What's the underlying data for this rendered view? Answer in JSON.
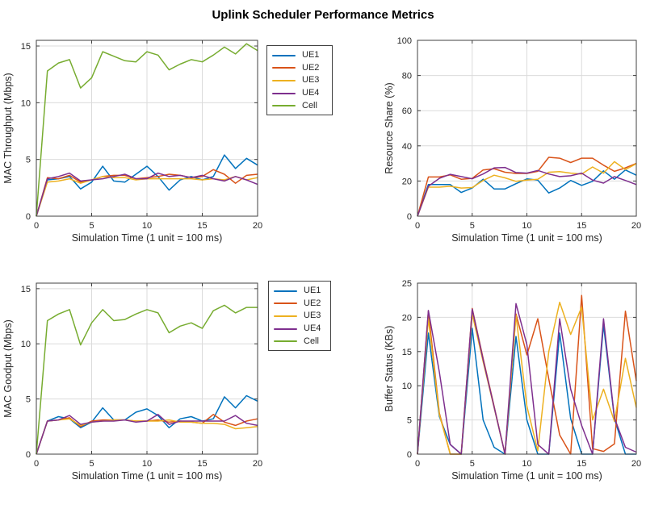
{
  "title": "Uplink Scheduler Performance Metrics",
  "palette": {
    "UE1": "#0072BD",
    "UE2": "#D95319",
    "UE3": "#EDB120",
    "UE4": "#7E2F8E",
    "Cell": "#77AC30"
  },
  "axis_colors": {
    "grid": "#DBDBDB",
    "frame": "#404040",
    "text": "#262626"
  },
  "legend": {
    "entries": [
      "UE1",
      "UE2",
      "UE3",
      "UE4",
      "Cell"
    ],
    "position": "right of left-column plots",
    "shown_on": [
      "throughput",
      "goodput"
    ]
  },
  "chart_data": [
    {
      "id": "throughput",
      "type": "line",
      "ylabel": "MAC Throughput (Mbps)",
      "xlabel": "Simulation Time (1 unit = 100 ms)",
      "xlim": [
        0,
        20
      ],
      "ylim": [
        0,
        15.5
      ],
      "xticks": [
        0,
        5,
        10,
        15,
        20
      ],
      "yticks": [
        0,
        5,
        10,
        15
      ],
      "grid": true,
      "legend": true,
      "x": [
        0,
        1,
        2,
        3,
        4,
        5,
        6,
        7,
        8,
        9,
        10,
        11,
        12,
        13,
        14,
        15,
        16,
        17,
        18,
        19,
        20
      ],
      "series": [
        {
          "name": "UE1",
          "values": [
            0,
            3.2,
            3.3,
            3.5,
            2.4,
            3.0,
            4.4,
            3.1,
            3.0,
            3.7,
            4.4,
            3.5,
            2.3,
            3.2,
            3.5,
            3.2,
            3.5,
            5.4,
            4.2,
            5.1,
            4.5
          ]
        },
        {
          "name": "UE2",
          "values": [
            0,
            3.4,
            3.3,
            3.6,
            3.0,
            3.2,
            3.5,
            3.6,
            3.6,
            3.3,
            3.4,
            3.5,
            3.7,
            3.6,
            3.4,
            3.5,
            4.1,
            3.7,
            2.9,
            3.6,
            3.7
          ]
        },
        {
          "name": "UE3",
          "values": [
            0,
            3.0,
            3.1,
            3.3,
            2.9,
            3.2,
            3.5,
            3.4,
            3.4,
            3.2,
            3.3,
            3.3,
            3.3,
            3.3,
            3.3,
            3.2,
            3.3,
            3.2,
            3.5,
            3.2,
            3.4
          ]
        },
        {
          "name": "UE4",
          "values": [
            0,
            3.3,
            3.5,
            3.8,
            3.1,
            3.2,
            3.3,
            3.5,
            3.7,
            3.3,
            3.3,
            3.8,
            3.5,
            3.6,
            3.4,
            3.6,
            3.3,
            3.1,
            3.5,
            3.2,
            2.8
          ]
        },
        {
          "name": "Cell",
          "values": [
            0,
            12.8,
            13.5,
            13.8,
            11.3,
            12.2,
            14.5,
            14.1,
            13.7,
            13.6,
            14.5,
            14.2,
            12.9,
            13.4,
            13.8,
            13.6,
            14.2,
            14.9,
            14.3,
            15.2,
            14.6
          ]
        }
      ]
    },
    {
      "id": "resource",
      "type": "line",
      "ylabel": "Resource Share (%)",
      "xlabel": "Simulation Time (1 unit = 100 ms)",
      "xlim": [
        0,
        20
      ],
      "ylim": [
        0,
        100
      ],
      "xticks": [
        0,
        5,
        10,
        15,
        20
      ],
      "yticks": [
        0,
        20,
        40,
        60,
        80,
        100
      ],
      "grid": true,
      "legend": false,
      "x": [
        0,
        1,
        2,
        3,
        4,
        5,
        6,
        7,
        8,
        9,
        10,
        11,
        12,
        13,
        14,
        15,
        16,
        17,
        18,
        19,
        20
      ],
      "series": [
        {
          "name": "UE1",
          "values": [
            0,
            18,
            18,
            18,
            13.5,
            16,
            21,
            15.5,
            15.5,
            18.5,
            21.2,
            20.5,
            13.2,
            16,
            20.3,
            17.5,
            19.8,
            25.8,
            21,
            26.3,
            23.3
          ]
        },
        {
          "name": "UE2",
          "values": [
            0,
            22.3,
            22.3,
            23.5,
            21,
            21.5,
            26.3,
            27,
            25,
            24.3,
            24.3,
            25.5,
            33.5,
            33,
            30.5,
            33,
            33,
            29,
            25.5,
            27.5,
            30
          ]
        },
        {
          "name": "UE3",
          "values": [
            0,
            16.5,
            16.5,
            17,
            16,
            16.3,
            20.3,
            23.3,
            21.8,
            19.8,
            20.5,
            21,
            25,
            25.3,
            24.5,
            24,
            28,
            24.5,
            31,
            26.5,
            29.8
          ]
        },
        {
          "name": "UE4",
          "values": [
            0,
            17,
            21.5,
            23.8,
            22.5,
            21.3,
            24,
            27.5,
            27.7,
            24.8,
            24.5,
            26,
            24,
            22.5,
            23,
            24.5,
            20.5,
            18.8,
            22.5,
            20.3,
            18
          ]
        }
      ]
    },
    {
      "id": "goodput",
      "type": "line",
      "ylabel": "MAC Goodput (Mbps)",
      "xlabel": "Simulation Time (1 unit = 100 ms)",
      "xlim": [
        0,
        20
      ],
      "ylim": [
        0,
        15.5
      ],
      "xticks": [
        0,
        5,
        10,
        15,
        20
      ],
      "yticks": [
        0,
        5,
        10,
        15
      ],
      "grid": true,
      "legend": true,
      "x": [
        0,
        1,
        2,
        3,
        4,
        5,
        6,
        7,
        8,
        9,
        10,
        11,
        12,
        13,
        14,
        15,
        16,
        17,
        18,
        19,
        20
      ],
      "series": [
        {
          "name": "UE1",
          "values": [
            0,
            3.0,
            3.4,
            3.2,
            2.4,
            2.9,
            4.2,
            3.1,
            3.1,
            3.8,
            4.1,
            3.5,
            2.4,
            3.2,
            3.4,
            3.0,
            3.2,
            5.2,
            4.2,
            5.3,
            4.8
          ]
        },
        {
          "name": "UE2",
          "values": [
            0,
            3.0,
            3.1,
            3.3,
            2.5,
            3.0,
            3.1,
            3.1,
            3.1,
            3.0,
            3.0,
            3.1,
            2.9,
            3.0,
            2.9,
            2.8,
            3.6,
            2.9,
            2.6,
            3.0,
            3.2
          ]
        },
        {
          "name": "UE3",
          "values": [
            0,
            3.0,
            3.1,
            3.2,
            2.6,
            2.9,
            3.0,
            3.1,
            3.1,
            3.0,
            3.0,
            3.0,
            3.1,
            2.9,
            2.9,
            2.8,
            2.8,
            2.7,
            2.3,
            2.4,
            2.5
          ]
        },
        {
          "name": "UE4",
          "values": [
            0,
            3.0,
            3.1,
            3.5,
            2.7,
            2.9,
            3.0,
            3.0,
            3.1,
            2.9,
            3.0,
            3.6,
            2.7,
            3.0,
            3.0,
            3.0,
            3.0,
            3.0,
            3.5,
            2.8,
            2.6
          ]
        },
        {
          "name": "Cell",
          "values": [
            0,
            12.1,
            12.7,
            13.1,
            9.9,
            11.9,
            13.1,
            12.1,
            12.2,
            12.7,
            13.1,
            12.8,
            11.0,
            11.6,
            11.9,
            11.4,
            13.0,
            13.5,
            12.8,
            13.3,
            13.3
          ]
        }
      ]
    },
    {
      "id": "buffer",
      "type": "line",
      "ylabel": "Buffer Status (KBs)",
      "xlabel": "Simulation Time (1 unit = 100 ms)",
      "xlim": [
        0,
        20
      ],
      "ylim": [
        0,
        25
      ],
      "xticks": [
        0,
        5,
        10,
        15,
        20
      ],
      "yticks": [
        0,
        5,
        10,
        15,
        20,
        25
      ],
      "grid": true,
      "legend": false,
      "x": [
        0,
        1,
        2,
        3,
        4,
        5,
        6,
        7,
        8,
        9,
        10,
        11,
        12,
        13,
        14,
        15,
        16,
        17,
        18,
        19,
        20
      ],
      "series": [
        {
          "name": "UE1",
          "values": [
            0,
            17.7,
            5.5,
            1.4,
            0,
            18.4,
            5.0,
            1.0,
            0,
            17.2,
            5.0,
            0,
            0,
            17.7,
            5.2,
            0,
            0,
            18.9,
            5.2,
            0,
            0
          ]
        },
        {
          "name": "UE2",
          "values": [
            0,
            20.9,
            6.0,
            0,
            0,
            21.3,
            14.0,
            7.0,
            0,
            20.5,
            14.5,
            19.8,
            11.0,
            2.8,
            0,
            23.2,
            0.8,
            0.4,
            1.5,
            20.9,
            10.7
          ]
        },
        {
          "name": "UE3",
          "values": [
            0,
            19.8,
            5.8,
            0,
            0,
            20.5,
            13.5,
            6.8,
            0,
            20.3,
            7.0,
            0.5,
            15.0,
            22.2,
            17.5,
            21.5,
            5.0,
            9.5,
            4.8,
            14.0,
            6.8
          ]
        },
        {
          "name": "UE4",
          "values": [
            0,
            21.0,
            12.0,
            1.4,
            0,
            21.2,
            13.8,
            6.9,
            0,
            22.0,
            16.0,
            1.4,
            0,
            19.8,
            9.5,
            4.2,
            0,
            19.8,
            5.3,
            1.0,
            0.3
          ]
        }
      ]
    }
  ]
}
